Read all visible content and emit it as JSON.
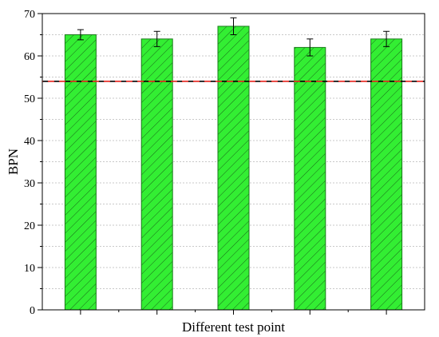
{
  "chart_data": {
    "type": "bar",
    "title": "",
    "xlabel": "Different test point",
    "ylabel": "BPN",
    "categories": [
      "",
      "",
      "",
      "",
      ""
    ],
    "values": [
      65,
      64,
      67,
      62,
      64
    ],
    "error": [
      1.2,
      1.8,
      2.0,
      2.0,
      1.8
    ],
    "ylim": [
      0,
      70
    ],
    "yticks": [
      0,
      10,
      20,
      30,
      40,
      50,
      60,
      70
    ],
    "reference_line": {
      "value": 54,
      "style": "dashed",
      "colors": [
        "#000000",
        "#e8231c"
      ]
    },
    "grid": "horizontal dotted",
    "bar_fill": "#33ee33",
    "bar_hatch": "diagonal",
    "bar_edge": "#1a7a1a"
  }
}
